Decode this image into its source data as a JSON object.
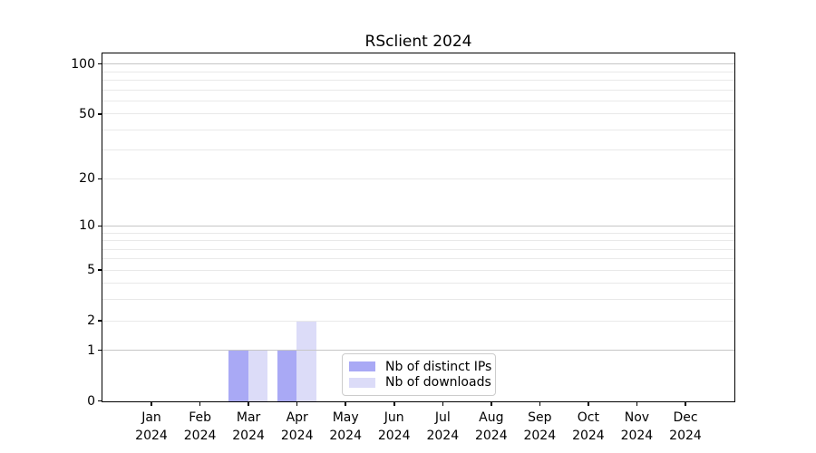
{
  "title": "RSclient 2024",
  "chart_data": {
    "type": "bar",
    "title": "RSclient 2024",
    "categories": [
      "Jan",
      "Feb",
      "Mar",
      "Apr",
      "May",
      "Jun",
      "Jul",
      "Aug",
      "Sep",
      "Oct",
      "Nov",
      "Dec"
    ],
    "year": "2024",
    "series": [
      {
        "name": "Nb of distinct IPs",
        "color": "#a9a9f5",
        "values": [
          0,
          0,
          1,
          1,
          0,
          0,
          0,
          0,
          0,
          0,
          0,
          0
        ]
      },
      {
        "name": "Nb of downloads",
        "color": "#dcdcf8",
        "values": [
          0,
          0,
          1,
          2,
          0,
          0,
          0,
          0,
          0,
          0,
          0,
          0
        ]
      }
    ],
    "xlabel": "",
    "ylabel": "",
    "yscale": "log1p",
    "ylim": [
      0,
      115
    ],
    "ytick_values": [
      0,
      1,
      2,
      5,
      10,
      20,
      50,
      100
    ],
    "grid_major_values": [
      1,
      10,
      100
    ],
    "grid_minor_values": [
      2,
      3,
      4,
      5,
      6,
      7,
      8,
      9,
      20,
      30,
      40,
      50,
      60,
      70,
      80,
      90
    ],
    "grid": "horizontal",
    "bar_width_fraction": 0.4,
    "legend_position": "lower center"
  },
  "colors": {
    "grid_major": "#c6c6c6",
    "grid_minor": "#e9e9e9",
    "spine": "#000000",
    "background": "#ffffff"
  }
}
